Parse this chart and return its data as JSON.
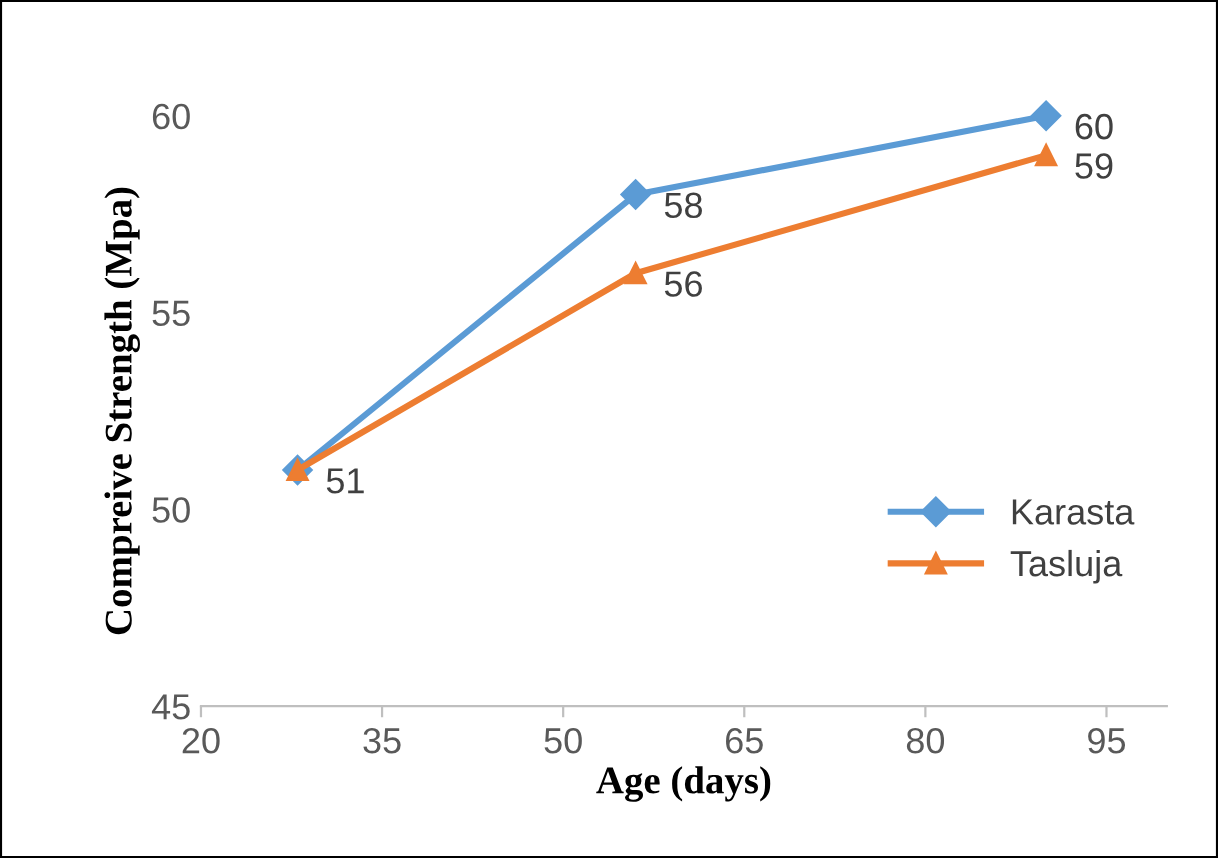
{
  "chart_data": {
    "type": "line",
    "xlabel": "Age (days)",
    "ylabel": "Compreive Strength (Mpa)",
    "x": [
      28,
      56,
      90
    ],
    "series": [
      {
        "name": "Karasta",
        "color": "#5b9bd5",
        "marker": "diamond",
        "values": [
          51,
          58,
          60
        ],
        "value_labels": [
          "51",
          "58",
          "60"
        ]
      },
      {
        "name": "Tasluja",
        "color": "#ed7d31",
        "marker": "triangle",
        "values": [
          51,
          56,
          59
        ],
        "value_labels": [
          null,
          "56",
          "59"
        ]
      }
    ],
    "xlim": [
      20,
      100
    ],
    "xticks": [
      20,
      35,
      50,
      65,
      80,
      95
    ],
    "ylim": [
      45,
      60
    ],
    "yticks": [
      45,
      50,
      55,
      60
    ],
    "grid": false,
    "legend": "center right",
    "line_style": "solid"
  }
}
